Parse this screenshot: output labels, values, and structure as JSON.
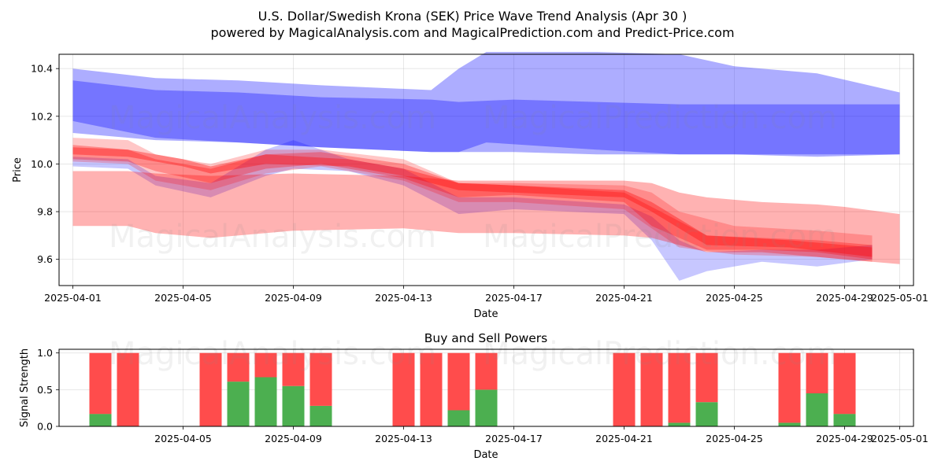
{
  "figure_title_line1": "U.S. Dollar/Swedish Krona (SEK) Price Wave Trend Analysis (Apr 30 )",
  "figure_title_line2": "powered by MagicalAnalysis.com and MagicalPrediction.com and Predict-Price.com",
  "watermarks": [
    "MagicalAnalysis.com",
    "MagicalPrediction.com",
    "MagicalAnalysis.com",
    "MagicalPrediction.com",
    "MagicalAnalysis.com",
    "MagicalPrediction.com"
  ],
  "colors": {
    "blue_band": "#0000ff",
    "red_band": "#ff0000",
    "buy": "#4caf50",
    "sell": "#ff4c4c",
    "grid": "#b0b0b0"
  },
  "chart_data": [
    {
      "type": "area",
      "title": "",
      "xlabel": "Date",
      "ylabel": "Price",
      "xlim": [
        "2025-04-01",
        "2025-05-01"
      ],
      "ylim": [
        9.49,
        10.46
      ],
      "grid": true,
      "x_ticks": [
        "2025-04-01",
        "2025-04-05",
        "2025-04-09",
        "2025-04-13",
        "2025-04-17",
        "2025-04-21",
        "2025-04-25",
        "2025-04-29",
        "2025-05-01"
      ],
      "y_ticks": [
        9.6,
        9.8,
        10.0,
        10.2,
        10.4
      ],
      "series": [
        {
          "name": "blue-long-upper",
          "color": "blue",
          "alpha": 0.32,
          "points": [
            [
              "2025-04-01",
              10.18,
              10.4
            ],
            [
              "2025-04-04",
              10.11,
              10.36
            ],
            [
              "2025-04-07",
              10.09,
              10.35
            ],
            [
              "2025-04-10",
              10.07,
              10.33
            ],
            [
              "2025-04-14",
              10.05,
              10.31
            ],
            [
              "2025-04-15",
              10.05,
              10.4
            ],
            [
              "2025-04-16",
              10.09,
              10.47
            ],
            [
              "2025-04-20",
              10.06,
              10.47
            ],
            [
              "2025-04-23",
              10.04,
              10.46
            ],
            [
              "2025-04-25",
              10.04,
              10.41
            ],
            [
              "2025-04-28",
              10.03,
              10.38
            ],
            [
              "2025-05-01",
              10.04,
              10.3
            ]
          ]
        },
        {
          "name": "blue-long-lower",
          "color": "blue",
          "alpha": 0.32,
          "points": [
            [
              "2025-04-01",
              10.13,
              10.35
            ],
            [
              "2025-04-04",
              10.1,
              10.31
            ],
            [
              "2025-04-07",
              10.09,
              10.3
            ],
            [
              "2025-04-10",
              10.07,
              10.28
            ],
            [
              "2025-04-14",
              10.05,
              10.27
            ],
            [
              "2025-04-15",
              10.05,
              10.26
            ],
            [
              "2025-04-17",
              10.05,
              10.27
            ],
            [
              "2025-04-20",
              10.04,
              10.26
            ],
            [
              "2025-04-23",
              10.04,
              10.25
            ],
            [
              "2025-04-25",
              10.04,
              10.25
            ],
            [
              "2025-04-28",
              10.04,
              10.25
            ],
            [
              "2025-05-01",
              10.04,
              10.25
            ]
          ]
        },
        {
          "name": "blue-short",
          "color": "blue",
          "alpha": 0.22,
          "points": [
            [
              "2025-04-01",
              9.99,
              10.03
            ],
            [
              "2025-04-03",
              9.98,
              10.02
            ],
            [
              "2025-04-04",
              9.91,
              9.95
            ],
            [
              "2025-04-06",
              9.86,
              9.92
            ],
            [
              "2025-04-08",
              9.95,
              10.06
            ],
            [
              "2025-04-09",
              9.98,
              10.1
            ],
            [
              "2025-04-11",
              9.97,
              10.02
            ],
            [
              "2025-04-13",
              9.91,
              9.98
            ],
            [
              "2025-04-15",
              9.79,
              9.86
            ],
            [
              "2025-04-17",
              9.81,
              9.86
            ],
            [
              "2025-04-21",
              9.79,
              9.83
            ],
            [
              "2025-04-22",
              9.68,
              9.78
            ],
            [
              "2025-04-23",
              9.51,
              9.68
            ],
            [
              "2025-04-24",
              9.55,
              9.63
            ],
            [
              "2025-04-26",
              9.59,
              9.64
            ],
            [
              "2025-04-28",
              9.57,
              9.64
            ],
            [
              "2025-04-30",
              9.6,
              9.66
            ]
          ]
        },
        {
          "name": "red-wide",
          "color": "red",
          "alpha": 0.3,
          "points": [
            [
              "2025-04-01",
              9.74,
              9.97
            ],
            [
              "2025-04-03",
              9.74,
              9.97
            ],
            [
              "2025-04-04",
              9.71,
              9.96
            ],
            [
              "2025-04-06",
              9.69,
              9.95
            ],
            [
              "2025-04-09",
              9.72,
              9.96
            ],
            [
              "2025-04-13",
              9.73,
              9.95
            ],
            [
              "2025-04-15",
              9.71,
              9.93
            ],
            [
              "2025-04-17",
              9.71,
              9.93
            ],
            [
              "2025-04-21",
              9.7,
              9.93
            ],
            [
              "2025-04-22",
              9.69,
              9.92
            ],
            [
              "2025-04-23",
              9.66,
              9.88
            ],
            [
              "2025-04-24",
              9.63,
              9.86
            ],
            [
              "2025-04-26",
              9.63,
              9.84
            ],
            [
              "2025-04-28",
              9.61,
              9.83
            ],
            [
              "2025-04-29",
              9.6,
              9.82
            ],
            [
              "2025-05-01",
              9.58,
              9.79
            ]
          ]
        },
        {
          "name": "red-mid",
          "color": "red",
          "alpha": 0.22,
          "points": [
            [
              "2025-04-01",
              10.01,
              10.11
            ],
            [
              "2025-04-03",
              10.0,
              10.1
            ],
            [
              "2025-04-04",
              9.93,
              10.04
            ],
            [
              "2025-04-06",
              9.89,
              10.0
            ],
            [
              "2025-04-08",
              9.96,
              10.06
            ],
            [
              "2025-04-10",
              9.99,
              10.06
            ],
            [
              "2025-04-13",
              9.93,
              10.02
            ],
            [
              "2025-04-15",
              9.84,
              9.92
            ],
            [
              "2025-04-17",
              9.84,
              9.92
            ],
            [
              "2025-04-21",
              9.81,
              9.91
            ],
            [
              "2025-04-22",
              9.73,
              9.88
            ],
            [
              "2025-04-23",
              9.65,
              9.8
            ],
            [
              "2025-04-25",
              9.62,
              9.74
            ],
            [
              "2025-04-28",
              9.61,
              9.72
            ],
            [
              "2025-04-30",
              9.59,
              9.7
            ]
          ]
        },
        {
          "name": "red-narrow",
          "color": "red",
          "alpha": 0.3,
          "points": [
            [
              "2025-04-01",
              10.02,
              10.08
            ],
            [
              "2025-04-03",
              10.01,
              10.06
            ],
            [
              "2025-04-04",
              9.97,
              10.02
            ],
            [
              "2025-04-06",
              9.92,
              9.98
            ],
            [
              "2025-04-08",
              9.98,
              10.04
            ],
            [
              "2025-04-10",
              10.0,
              10.05
            ],
            [
              "2025-04-13",
              9.94,
              10.0
            ],
            [
              "2025-04-15",
              9.86,
              9.92
            ],
            [
              "2025-04-17",
              9.87,
              9.91
            ],
            [
              "2025-04-21",
              9.84,
              9.88
            ],
            [
              "2025-04-22",
              9.74,
              9.82
            ],
            [
              "2025-04-24",
              9.64,
              9.7
            ],
            [
              "2025-04-26",
              9.64,
              9.69
            ],
            [
              "2025-04-28",
              9.63,
              9.68
            ],
            [
              "2025-04-30",
              9.6,
              9.66
            ]
          ]
        },
        {
          "name": "red-core",
          "color": "red",
          "alpha": 0.35,
          "points": [
            [
              "2025-04-01",
              10.04,
              10.07
            ],
            [
              "2025-04-03",
              10.03,
              10.06
            ],
            [
              "2025-04-05",
              9.99,
              10.02
            ],
            [
              "2025-04-06",
              9.96,
              9.99
            ],
            [
              "2025-04-08",
              10.0,
              10.04
            ],
            [
              "2025-04-11",
              9.99,
              10.02
            ],
            [
              "2025-04-13",
              9.95,
              9.98
            ],
            [
              "2025-04-15",
              9.89,
              9.92
            ],
            [
              "2025-04-17",
              9.88,
              9.91
            ],
            [
              "2025-04-21",
              9.86,
              9.89
            ],
            [
              "2025-04-22",
              9.8,
              9.84
            ],
            [
              "2025-04-24",
              9.66,
              9.7
            ],
            [
              "2025-04-27",
              9.65,
              9.68
            ],
            [
              "2025-04-30",
              9.61,
              9.65
            ]
          ]
        }
      ]
    },
    {
      "type": "bar",
      "title": "Buy and Sell Powers",
      "xlabel": "Date",
      "ylabel": "Signal Strength",
      "xlim": [
        "2025-04-01",
        "2025-05-01"
      ],
      "ylim": [
        0,
        1.05
      ],
      "grid": true,
      "x_ticks": [
        "2025-04-05",
        "2025-04-09",
        "2025-04-13",
        "2025-04-17",
        "2025-04-21",
        "2025-04-25",
        "2025-04-29",
        "2025-05-01"
      ],
      "y_ticks": [
        "0.0",
        "0.5",
        "1.0"
      ],
      "bars": [
        {
          "date": "2025-04-02",
          "buy": 0.17,
          "sell": 0.83
        },
        {
          "date": "2025-04-03",
          "buy": 0.0,
          "sell": 1.0
        },
        {
          "date": "2025-04-06",
          "buy": 0.0,
          "sell": 1.0
        },
        {
          "date": "2025-04-07",
          "buy": 0.61,
          "sell": 0.39
        },
        {
          "date": "2025-04-08",
          "buy": 0.67,
          "sell": 0.33
        },
        {
          "date": "2025-04-09",
          "buy": 0.55,
          "sell": 0.45
        },
        {
          "date": "2025-04-10",
          "buy": 0.28,
          "sell": 0.72
        },
        {
          "date": "2025-04-13",
          "buy": 0.0,
          "sell": 1.0
        },
        {
          "date": "2025-04-14",
          "buy": 0.0,
          "sell": 1.0
        },
        {
          "date": "2025-04-15",
          "buy": 0.22,
          "sell": 0.78
        },
        {
          "date": "2025-04-16",
          "buy": 0.5,
          "sell": 0.5
        },
        {
          "date": "2025-04-21",
          "buy": 0.0,
          "sell": 1.0
        },
        {
          "date": "2025-04-22",
          "buy": 0.0,
          "sell": 1.0
        },
        {
          "date": "2025-04-23",
          "buy": 0.05,
          "sell": 0.95
        },
        {
          "date": "2025-04-24",
          "buy": 0.33,
          "sell": 0.67
        },
        {
          "date": "2025-04-27",
          "buy": 0.05,
          "sell": 0.95
        },
        {
          "date": "2025-04-28",
          "buy": 0.45,
          "sell": 0.55
        },
        {
          "date": "2025-04-29",
          "buy": 0.17,
          "sell": 0.83
        }
      ]
    }
  ]
}
